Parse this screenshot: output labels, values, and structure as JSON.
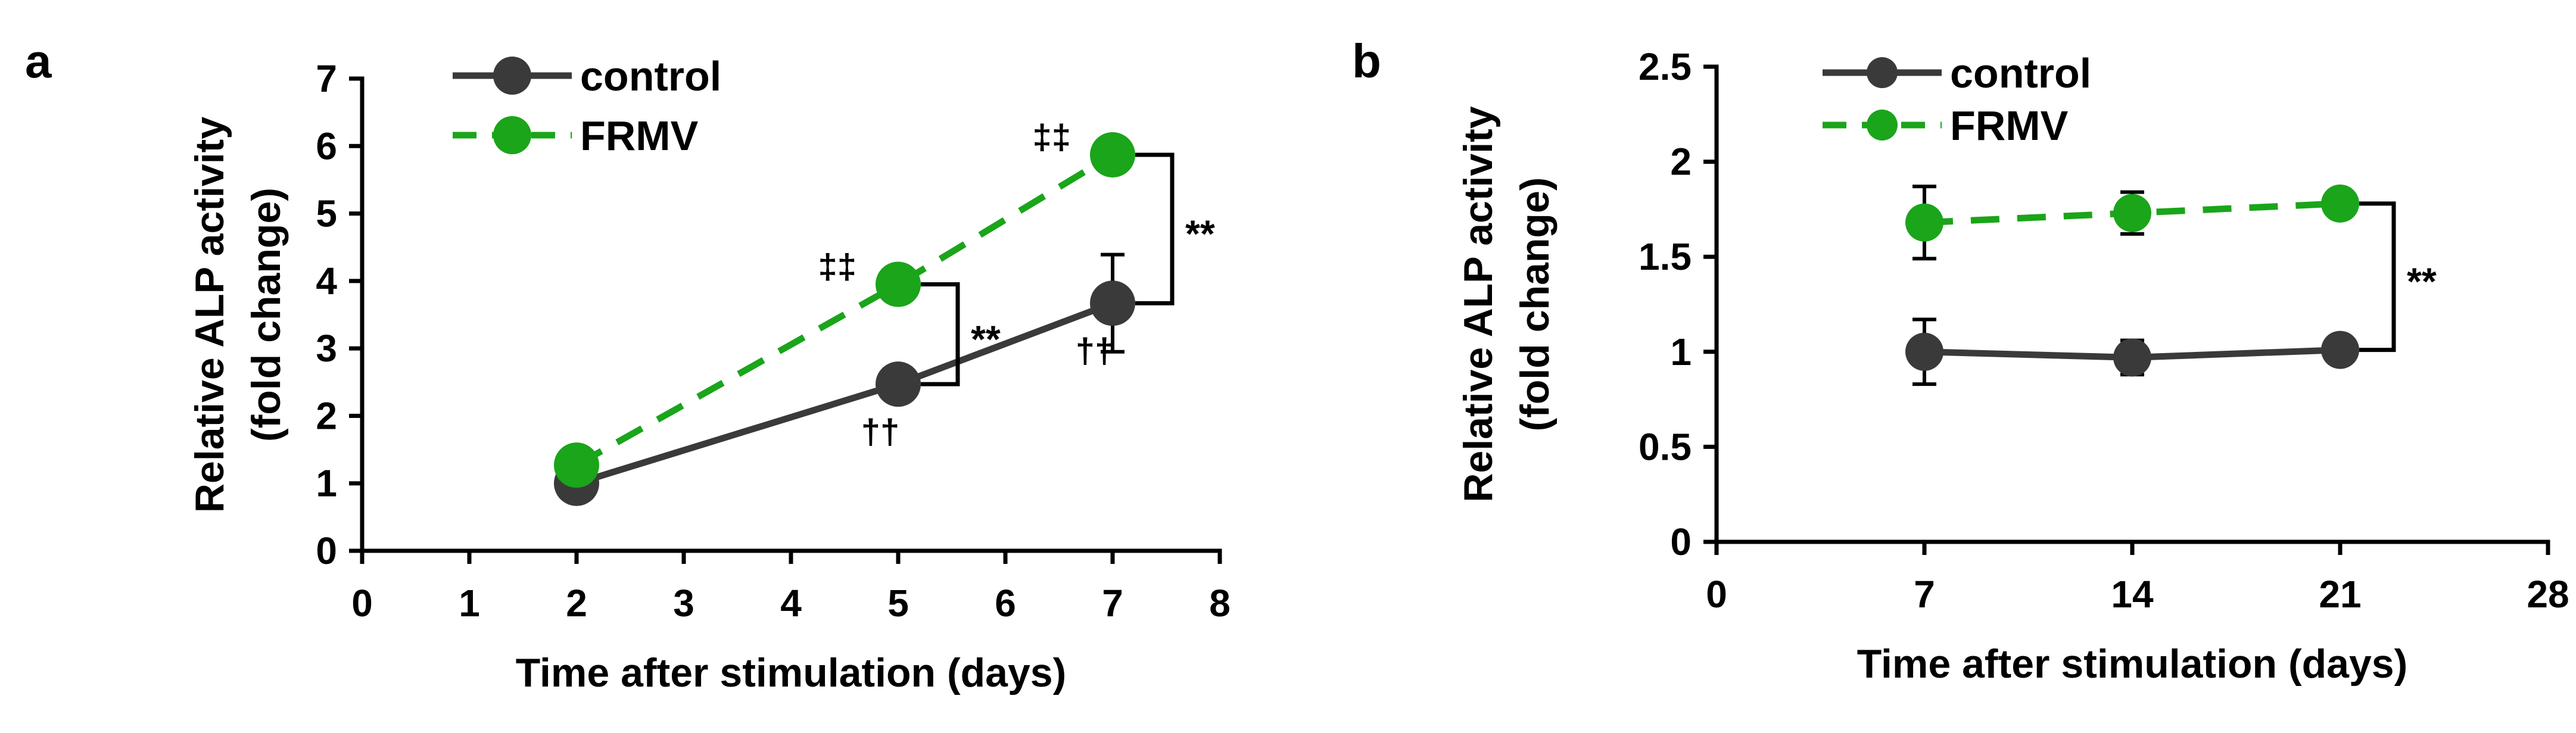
{
  "chart_data": [
    {
      "type": "line",
      "panel_label": "a",
      "xlabel": "Time after stimulation (days)",
      "ylabel_lines": [
        "Relative ALP activity",
        "(fold change)"
      ],
      "xlim": [
        0,
        8
      ],
      "ylim": [
        0,
        7
      ],
      "xticks": [
        0,
        1,
        2,
        3,
        4,
        5,
        6,
        7,
        8
      ],
      "yticks": [
        0,
        1,
        2,
        3,
        4,
        5,
        6,
        7
      ],
      "legend_position": "top-left",
      "series": [
        {
          "name": "control",
          "color": "#3a3a3a",
          "dash": "solid",
          "x": [
            2,
            5,
            7
          ],
          "values": [
            1.0,
            2.47,
            3.67
          ],
          "errors": [
            0,
            0,
            0.72
          ],
          "labels": [
            "",
            "††",
            "††"
          ],
          "label_side": "below"
        },
        {
          "name": "FRMV",
          "color": "#1aa51a",
          "dash": "dashed",
          "x": [
            2,
            5,
            7
          ],
          "values": [
            1.27,
            3.95,
            5.87
          ],
          "errors": [
            0,
            0,
            0
          ],
          "labels": [
            "",
            "‡‡",
            "‡‡"
          ],
          "label_side": "left"
        }
      ],
      "significance": [
        {
          "x": 5,
          "label": "**"
        },
        {
          "x": 7,
          "label": "**"
        }
      ]
    },
    {
      "type": "line",
      "panel_label": "b",
      "xlabel": "Time after stimulation (days)",
      "ylabel_lines": [
        "Relative ALP activity",
        "(fold change)"
      ],
      "xlim": [
        0,
        28
      ],
      "ylim": [
        0,
        2.5
      ],
      "xticks": [
        0,
        7,
        14,
        21,
        28
      ],
      "yticks": [
        0,
        0.5,
        1,
        1.5,
        2,
        2.5
      ],
      "legend_position": "top-left",
      "series": [
        {
          "name": "control",
          "color": "#3a3a3a",
          "dash": "solid",
          "x": [
            7,
            14,
            21
          ],
          "values": [
            1.0,
            0.97,
            1.01
          ],
          "errors": [
            0.17,
            0.09,
            0.03
          ],
          "labels": [
            "",
            "",
            ""
          ],
          "label_side": "below"
        },
        {
          "name": "FRMV",
          "color": "#1aa51a",
          "dash": "dashed",
          "x": [
            7,
            14,
            21
          ],
          "values": [
            1.68,
            1.73,
            1.78
          ],
          "errors": [
            0.19,
            0.11,
            0.03
          ],
          "labels": [
            "",
            "",
            ""
          ],
          "label_side": "left"
        }
      ],
      "significance": [
        {
          "x": 21,
          "label": "**"
        }
      ]
    }
  ]
}
